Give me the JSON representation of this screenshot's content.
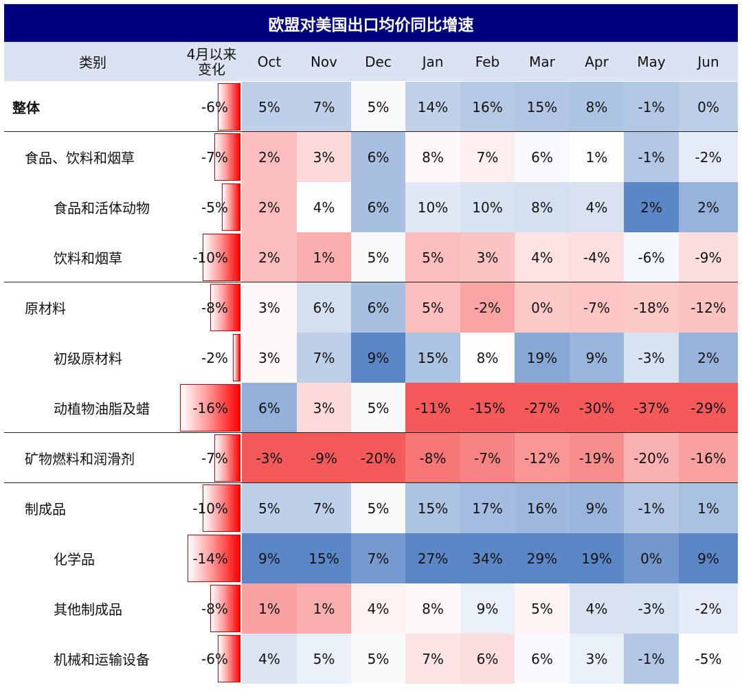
{
  "chart_data": {
    "type": "heatmap",
    "title": "欧盟对美国出口均价同比增速",
    "columns": [
      "类别",
      "4月以来变化",
      "Oct",
      "Nov",
      "Dec",
      "Jan",
      "Feb",
      "Mar",
      "Apr",
      "May",
      "Jun"
    ],
    "change_header": [
      "4月以来",
      "变化"
    ],
    "rows": [
      {
        "label": "整体",
        "level": 0,
        "change": -6,
        "values": [
          5,
          7,
          5,
          14,
          16,
          15,
          8,
          -1,
          0
        ]
      },
      {
        "label": "食品、饮料和烟草",
        "level": 1,
        "change": -7,
        "values": [
          2,
          3,
          6,
          8,
          7,
          6,
          1,
          -1,
          -2
        ]
      },
      {
        "label": "食品和活体动物",
        "level": 2,
        "change": -5,
        "values": [
          2,
          4,
          6,
          10,
          10,
          8,
          4,
          2,
          2
        ]
      },
      {
        "label": "饮料和烟草",
        "level": 2,
        "change": -10,
        "values": [
          2,
          1,
          5,
          5,
          3,
          4,
          -4,
          -6,
          -9
        ]
      },
      {
        "label": "原材料",
        "level": 1,
        "change": -8,
        "values": [
          3,
          6,
          6,
          5,
          -2,
          0,
          -7,
          -18,
          -12
        ]
      },
      {
        "label": "初级原材料",
        "level": 2,
        "change": -2,
        "values": [
          3,
          7,
          9,
          15,
          8,
          19,
          9,
          -3,
          2
        ]
      },
      {
        "label": "动植物油脂及蜡",
        "level": 2,
        "change": -16,
        "values": [
          6,
          3,
          5,
          -11,
          -15,
          -27,
          -30,
          -37,
          -29
        ]
      },
      {
        "label": "矿物燃料和润滑剂",
        "level": 1,
        "change": -7,
        "values": [
          -3,
          -9,
          -20,
          -8,
          -7,
          -12,
          -19,
          -20,
          -16
        ]
      },
      {
        "label": "制成品",
        "level": 1,
        "change": -10,
        "values": [
          5,
          7,
          5,
          15,
          17,
          16,
          9,
          -1,
          1
        ]
      },
      {
        "label": "化学品",
        "level": 2,
        "change": -14,
        "values": [
          9,
          15,
          7,
          27,
          34,
          29,
          19,
          0,
          9
        ]
      },
      {
        "label": "其他制成品",
        "level": 2,
        "change": -8,
        "values": [
          1,
          1,
          4,
          8,
          9,
          5,
          4,
          -3,
          -2
        ]
      },
      {
        "label": "机械和运输设备",
        "level": 2,
        "change": -6,
        "values": [
          4,
          5,
          5,
          7,
          6,
          6,
          3,
          -1,
          -5
        ]
      }
    ],
    "unit": "%",
    "section_breaks_after_rows": [
      0,
      3,
      6,
      7
    ],
    "colors": {
      "title_bg": "#00007f",
      "header_bg": "#dbe2f1",
      "positive": "#5b87c6",
      "negative": "#f45a5a",
      "bar_fill": "#ff0000"
    }
  }
}
